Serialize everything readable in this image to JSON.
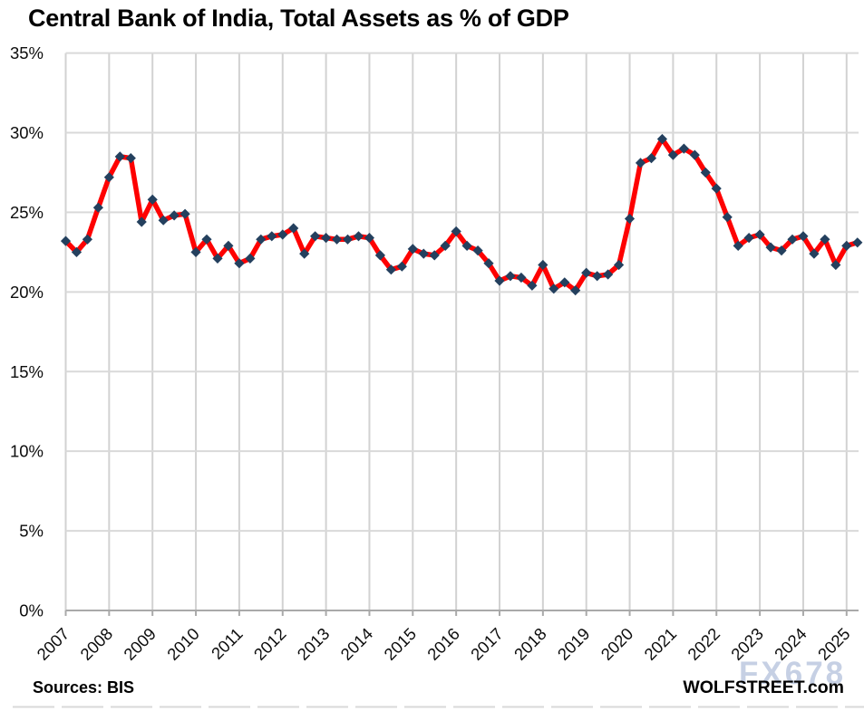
{
  "title": "Central Bank of India, Total Assets as % of GDP",
  "footer": {
    "sources": "Sources: BIS",
    "brand": "WOLFSTREET.com",
    "watermark": "FX678"
  },
  "colors": {
    "line": "#FE0101",
    "marker": "#24405E",
    "gridline": "#D9D9D9",
    "vertical_gridline": "#D2D2D2",
    "axis": "#A9A9A9",
    "text": "#0D0D0D",
    "watermark": "#B7C4DD"
  },
  "chart_data": {
    "type": "line",
    "title": "Central Bank of India, Total Assets as % of GDP",
    "xlabel": "",
    "ylabel": "",
    "frequency": "quarterly",
    "x_start": "2007-Q1",
    "x_end": "2025-Q2",
    "x_tick_labels": [
      "2007",
      "2008",
      "2009",
      "2010",
      "2011",
      "2012",
      "2013",
      "2014",
      "2015",
      "2016",
      "2017",
      "2018",
      "2019",
      "2020",
      "2021",
      "2022",
      "2023",
      "2024",
      "2025"
    ],
    "y_ticks": [
      0,
      5,
      10,
      15,
      20,
      25,
      30,
      35
    ],
    "y_tick_labels": [
      "0%",
      "5%",
      "10%",
      "15%",
      "20%",
      "25%",
      "30%",
      "35%"
    ],
    "ylim": [
      0,
      35
    ],
    "grid": true,
    "legend": false,
    "series": [
      {
        "name": "Central bank total assets as % of GDP",
        "marker": "diamond",
        "values": [
          23.2,
          22.5,
          23.3,
          25.3,
          27.2,
          28.5,
          28.4,
          24.4,
          25.8,
          24.5,
          24.8,
          24.9,
          22.5,
          23.3,
          22.1,
          22.9,
          21.8,
          22.1,
          23.3,
          23.5,
          23.6,
          24.0,
          22.4,
          23.5,
          23.4,
          23.3,
          23.3,
          23.5,
          23.4,
          22.3,
          21.4,
          21.6,
          22.7,
          22.4,
          22.3,
          22.9,
          23.8,
          22.9,
          22.6,
          21.8,
          20.7,
          21.0,
          20.9,
          20.4,
          21.7,
          20.2,
          20.6,
          20.1,
          21.2,
          21.0,
          21.1,
          21.7,
          24.6,
          28.1,
          28.4,
          29.6,
          28.6,
          29.0,
          28.6,
          27.5,
          26.5,
          24.7,
          22.9,
          23.4,
          23.6,
          22.8,
          22.6,
          23.3,
          23.5,
          22.4,
          23.3,
          21.7,
          22.9,
          23.1
        ]
      }
    ]
  }
}
